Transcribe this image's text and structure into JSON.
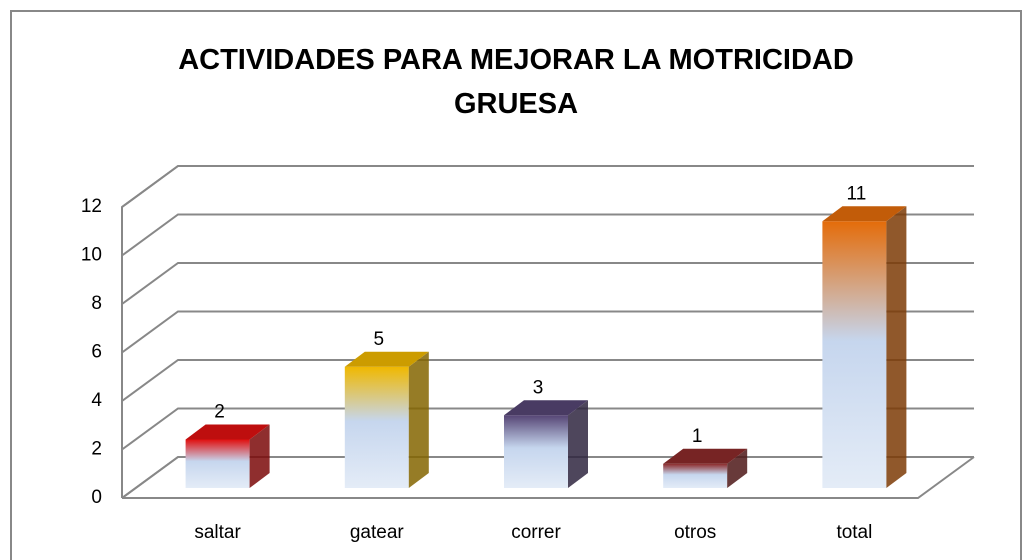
{
  "chart_data": {
    "type": "bar3d",
    "title": "ACTIVIDADES PARA MEJORAR LA MOTRICIDAD GRUESA",
    "categories": [
      "saltar",
      "gatear",
      "correr",
      "otros",
      "total"
    ],
    "values": [
      2,
      5,
      3,
      1,
      11
    ],
    "colors": [
      "#e01010",
      "#f0b800",
      "#564575",
      "#8c2a2a",
      "#e46c0a"
    ],
    "ylim": [
      0,
      12
    ],
    "yticks": [
      0,
      2,
      4,
      6,
      8,
      10,
      12
    ],
    "grid": true
  }
}
